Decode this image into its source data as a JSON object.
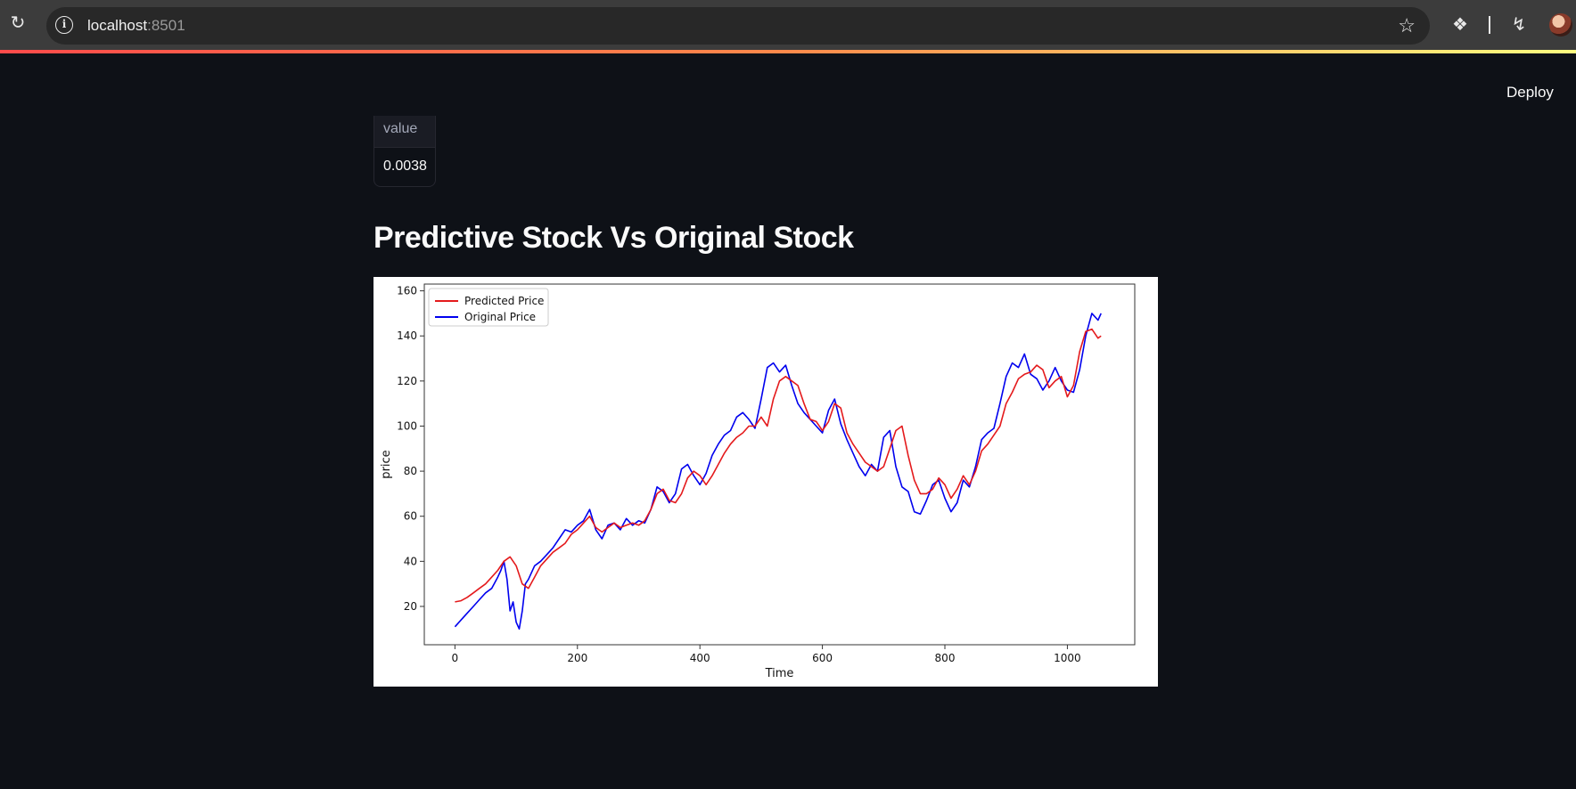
{
  "browser": {
    "url_host": "localhost",
    "url_port": ":8501"
  },
  "app": {
    "deploy_label": "Deploy",
    "table": {
      "header": "value",
      "cell": "0.0038"
    },
    "title": "Predictive Stock Vs Original Stock"
  },
  "chart_data": {
    "type": "line",
    "title": "",
    "xlabel": "Time",
    "ylabel": "price",
    "xlim": [
      -50,
      1110
    ],
    "ylim": [
      3,
      163
    ],
    "xticks": [
      0,
      200,
      400,
      600,
      800,
      1000
    ],
    "yticks": [
      20,
      40,
      60,
      80,
      100,
      120,
      140,
      160
    ],
    "legend_position": "top-left",
    "grid": false,
    "series": [
      {
        "name": "Predicted Price",
        "color": "#e41a1c",
        "x": [
          0,
          10,
          20,
          30,
          40,
          50,
          60,
          70,
          80,
          90,
          100,
          110,
          120,
          130,
          140,
          150,
          160,
          170,
          180,
          190,
          200,
          210,
          220,
          230,
          240,
          250,
          260,
          270,
          280,
          290,
          300,
          310,
          320,
          330,
          340,
          350,
          360,
          370,
          380,
          390,
          400,
          410,
          420,
          430,
          440,
          450,
          460,
          470,
          480,
          490,
          500,
          510,
          520,
          530,
          540,
          550,
          560,
          570,
          580,
          590,
          600,
          610,
          620,
          630,
          640,
          650,
          660,
          670,
          680,
          690,
          700,
          710,
          720,
          730,
          740,
          750,
          760,
          770,
          780,
          790,
          800,
          810,
          820,
          830,
          840,
          850,
          860,
          870,
          880,
          890,
          900,
          910,
          920,
          930,
          940,
          950,
          960,
          970,
          980,
          990,
          1000,
          1010,
          1020,
          1030,
          1040,
          1050,
          1055
        ],
        "y": [
          22,
          22.5,
          24,
          26,
          28,
          30,
          33,
          36,
          40,
          42,
          38,
          30,
          28,
          33,
          38,
          41,
          44,
          46,
          48,
          52,
          54,
          57,
          60,
          55,
          53,
          55,
          57,
          55,
          56,
          57,
          56,
          58,
          63,
          70,
          72,
          67,
          66,
          70,
          77,
          80,
          78,
          74,
          78,
          83,
          88,
          92,
          95,
          97,
          100,
          100,
          104,
          100,
          112,
          120,
          122,
          120,
          118,
          110,
          103,
          102,
          98,
          102,
          110,
          108,
          97,
          92,
          88,
          84,
          82,
          80,
          82,
          90,
          98,
          100,
          87,
          76,
          70,
          70,
          72,
          77,
          74,
          68,
          72,
          78,
          74,
          80,
          89,
          92,
          96,
          100,
          110,
          115,
          121,
          123,
          124,
          127,
          125,
          117,
          120,
          122,
          113,
          118,
          133,
          142,
          143,
          139,
          140
        ]
      },
      {
        "name": "Original Price",
        "color": "#0000ee",
        "x": [
          0,
          10,
          20,
          30,
          40,
          50,
          60,
          70,
          75,
          80,
          85,
          90,
          95,
          100,
          105,
          110,
          115,
          120,
          130,
          140,
          150,
          160,
          170,
          180,
          190,
          200,
          210,
          220,
          230,
          240,
          250,
          260,
          270,
          280,
          290,
          300,
          310,
          320,
          330,
          340,
          350,
          360,
          370,
          380,
          390,
          400,
          410,
          420,
          430,
          440,
          450,
          460,
          470,
          480,
          490,
          500,
          510,
          520,
          530,
          540,
          550,
          560,
          570,
          580,
          590,
          600,
          610,
          620,
          630,
          640,
          650,
          660,
          670,
          680,
          690,
          700,
          710,
          720,
          730,
          740,
          750,
          760,
          770,
          780,
          790,
          800,
          810,
          820,
          830,
          840,
          850,
          860,
          870,
          880,
          890,
          900,
          910,
          920,
          930,
          940,
          950,
          960,
          970,
          980,
          990,
          1000,
          1010,
          1020,
          1030,
          1040,
          1050,
          1055
        ],
        "y": [
          11,
          14,
          17,
          20,
          23,
          26,
          28,
          33,
          36,
          40,
          32,
          18,
          22,
          13,
          10,
          18,
          30,
          32,
          38,
          40,
          43,
          46,
          50,
          54,
          53,
          56,
          58,
          63,
          54,
          50,
          56,
          57,
          54,
          59,
          56,
          58,
          57,
          63,
          73,
          71,
          66,
          70,
          81,
          83,
          78,
          74,
          79,
          87,
          92,
          96,
          98,
          104,
          106,
          103,
          99,
          112,
          126,
          128,
          124,
          127,
          118,
          110,
          106,
          103,
          100,
          97,
          107,
          112,
          101,
          94,
          88,
          82,
          78,
          83,
          80,
          95,
          98,
          82,
          73,
          71,
          62,
          61,
          67,
          74,
          76,
          68,
          62,
          66,
          76,
          73,
          82,
          94,
          97,
          99,
          110,
          122,
          128,
          126,
          132,
          123,
          121,
          116,
          120,
          126,
          120,
          116,
          115,
          125,
          140,
          150,
          147,
          150
        ]
      }
    ]
  }
}
